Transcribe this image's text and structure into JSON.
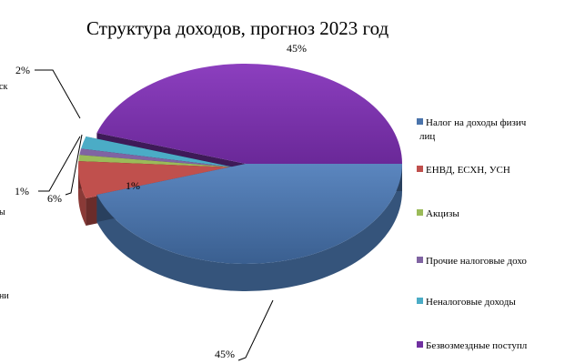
{
  "chart_data": {
    "type": "pie",
    "title": "Структура  доходов, прогноз 2023 год",
    "categories": [
      "Налог на доходы физических лиц",
      "ЕНВД, ЕСХН, УСН",
      "Акцизы",
      "Прочие налоговые доходы",
      "Неналоговые доходы",
      "Безвозмездные поступления"
    ],
    "legend_lines": [
      [
        "Налог на доходы физич",
        "лиц"
      ],
      [
        "ЕНВД, ЕСХН, УСН"
      ],
      [
        "Акцизы"
      ],
      [
        "Прочие налоговые дохо"
      ],
      [
        "Неналоговые доходы"
      ],
      [
        "Безвозмездные поступл"
      ]
    ],
    "values": [
      45,
      6,
      1,
      1,
      2,
      45
    ],
    "data_labels": [
      "45%",
      "6%",
      "1%",
      "1%",
      "2%",
      "45%"
    ],
    "colors": [
      "#4a74ab",
      "#c0504d",
      "#9bbb59",
      "#8064a2",
      "#4bacc6",
      "#7030a0"
    ],
    "legend_position": "right",
    "clipped_left_labels": [
      "ск",
      "ы",
      "ни"
    ]
  }
}
